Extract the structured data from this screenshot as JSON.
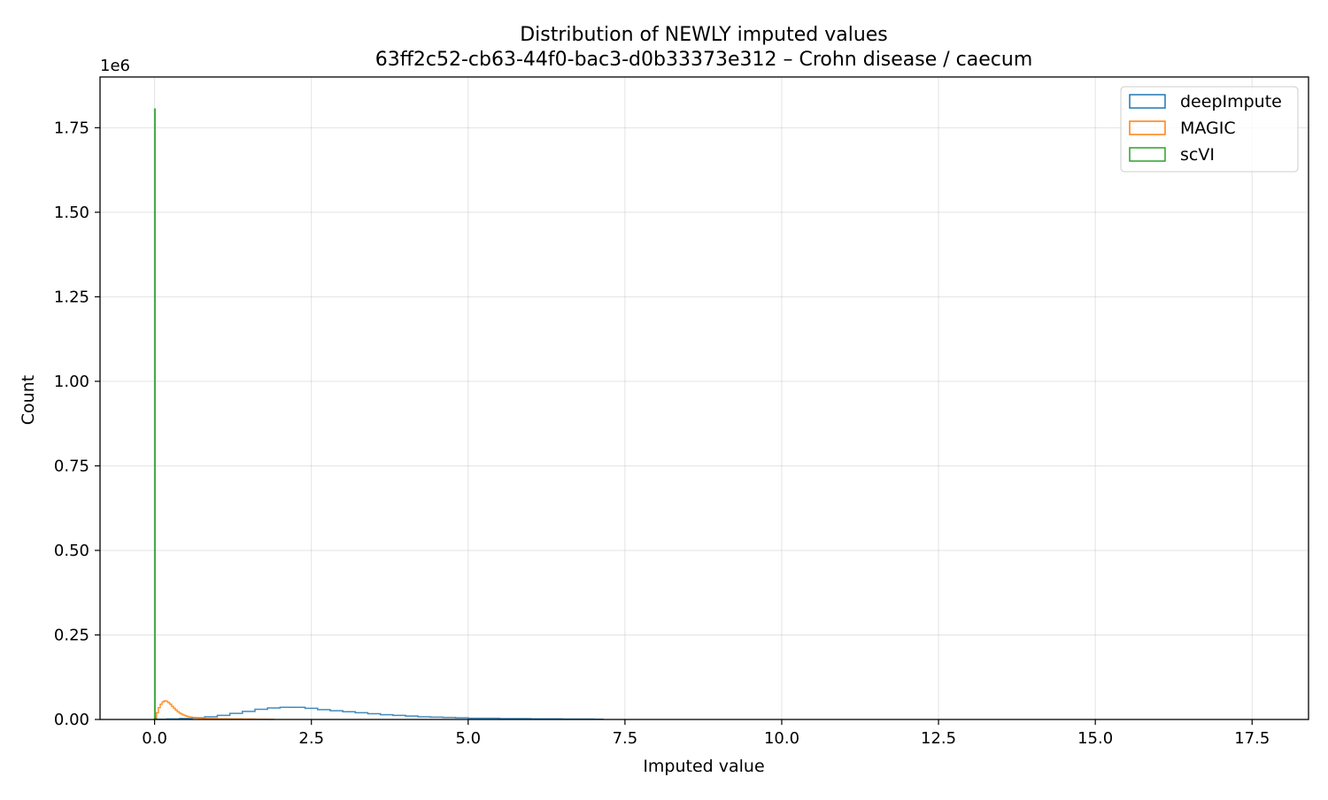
{
  "chart_data": {
    "type": "histogram",
    "title": "Distribution of NEWLY imputed values",
    "subtitle": "63ff2c52-cb63-44f0-bac3-d0b33373e312 – Crohn disease / caecum",
    "xlabel": "Imputed value",
    "ylabel": "Count",
    "y_scale_label": "1e6",
    "xlim": [
      -0.87,
      18.4
    ],
    "ylim": [
      0,
      1900000
    ],
    "x_ticks": [
      0.0,
      2.5,
      5.0,
      7.5,
      10.0,
      12.5,
      15.0,
      17.5
    ],
    "x_tick_labels": [
      "0.0",
      "2.5",
      "5.0",
      "7.5",
      "10.0",
      "12.5",
      "15.0",
      "17.5"
    ],
    "y_ticks": [
      0,
      250000,
      500000,
      750000,
      1000000,
      1250000,
      1500000,
      1750000
    ],
    "y_tick_labels": [
      "0.00",
      "0.25",
      "0.50",
      "0.75",
      "1.00",
      "1.25",
      "1.50",
      "1.75"
    ],
    "grid": true,
    "legend_position": "top-right",
    "series": [
      {
        "name": "deepImpute",
        "color": "#1f77b4",
        "bin_edges": [
          0.0,
          0.2,
          0.4,
          0.6,
          0.8,
          1.0,
          1.2,
          1.4,
          1.6,
          1.8,
          2.0,
          2.2,
          2.4,
          2.6,
          2.8,
          3.0,
          3.2,
          3.4,
          3.6,
          3.8,
          4.0,
          4.2,
          4.4,
          4.6,
          4.8,
          5.0,
          5.5,
          6.0,
          6.5,
          7.0,
          7.15
        ],
        "counts": [
          500,
          1500,
          3000,
          5000,
          8000,
          12000,
          18000,
          24000,
          30000,
          34000,
          36000,
          36000,
          33000,
          29000,
          26000,
          23000,
          20000,
          17000,
          14000,
          12000,
          10000,
          8000,
          7000,
          6000,
          5000,
          3500,
          2500,
          1800,
          1200,
          600
        ]
      },
      {
        "name": "MAGIC",
        "color": "#ff7f0e",
        "bin_edges": [
          0.0,
          0.03,
          0.06,
          0.09,
          0.12,
          0.15,
          0.18,
          0.21,
          0.24,
          0.27,
          0.3,
          0.33,
          0.36,
          0.39,
          0.42,
          0.45,
          0.48,
          0.51,
          0.54,
          0.57,
          0.6,
          0.65,
          0.7,
          0.75,
          0.8,
          0.9,
          1.0,
          1.2,
          1.4,
          1.6,
          1.8,
          1.9
        ],
        "counts": [
          5000,
          20000,
          35000,
          45000,
          52000,
          55000,
          54000,
          50000,
          45000,
          39000,
          33000,
          28000,
          23000,
          19000,
          16000,
          13000,
          11000,
          9000,
          8000,
          7000,
          6000,
          5000,
          4000,
          3500,
          3000,
          2500,
          2000,
          1500,
          1200,
          800,
          400
        ]
      },
      {
        "name": "scVI",
        "color": "#2ca02c",
        "bin_edges": [
          0.0,
          0.01,
          0.02,
          0.03
        ],
        "counts": [
          1805000,
          5000,
          1000
        ]
      }
    ]
  }
}
